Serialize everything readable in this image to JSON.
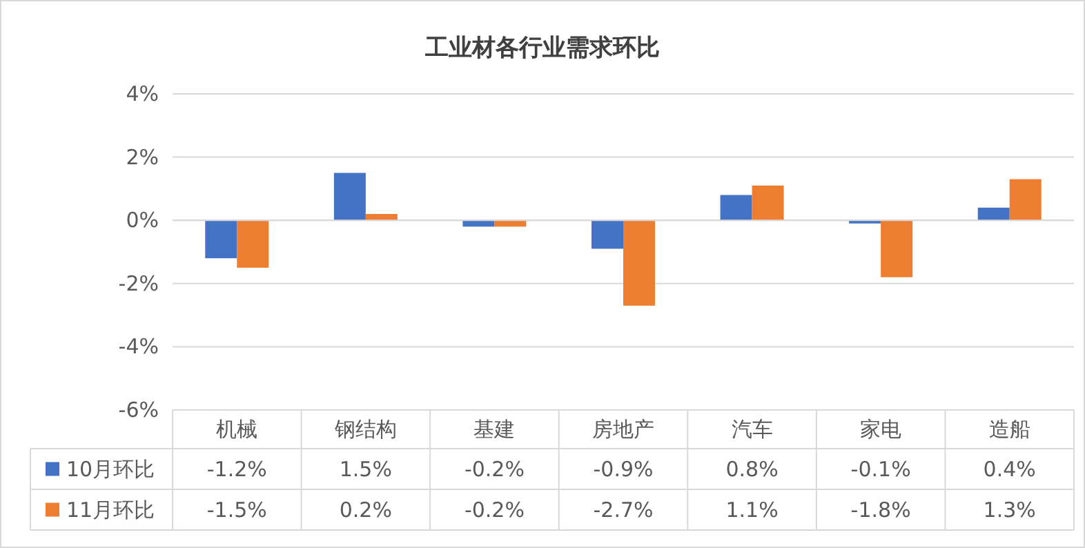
{
  "chart_data": {
    "type": "bar",
    "title": "工业材各行业需求环比",
    "categories": [
      "机械",
      "钢结构",
      "基建",
      "房地产",
      "汽车",
      "家电",
      "造船"
    ],
    "series": [
      {
        "name": "10月环比",
        "color": "#4472c4",
        "values": [
          -1.2,
          1.5,
          -0.2,
          -0.9,
          0.8,
          -0.1,
          0.4
        ],
        "value_labels": [
          "-1.2%",
          "1.5%",
          "-0.2%",
          "-0.9%",
          "0.8%",
          "-0.1%",
          "0.4%"
        ]
      },
      {
        "name": "11月环比",
        "color": "#ed7d31",
        "values": [
          -1.5,
          0.2,
          -0.2,
          -2.7,
          1.1,
          -1.8,
          1.3
        ],
        "value_labels": [
          "-1.5%",
          "0.2%",
          "-0.2%",
          "-2.7%",
          "1.1%",
          "-1.8%",
          "1.3%"
        ]
      }
    ],
    "ylim": [
      -6,
      4
    ],
    "yticks": [
      {
        "value": -6,
        "label": "-6%"
      },
      {
        "value": -4,
        "label": "-4%"
      },
      {
        "value": -2,
        "label": "-2%"
      },
      {
        "value": 0,
        "label": "0%"
      },
      {
        "value": 2,
        "label": "2%"
      },
      {
        "value": 4,
        "label": "4%"
      }
    ],
    "grid": "y",
    "legend": "bottom"
  }
}
